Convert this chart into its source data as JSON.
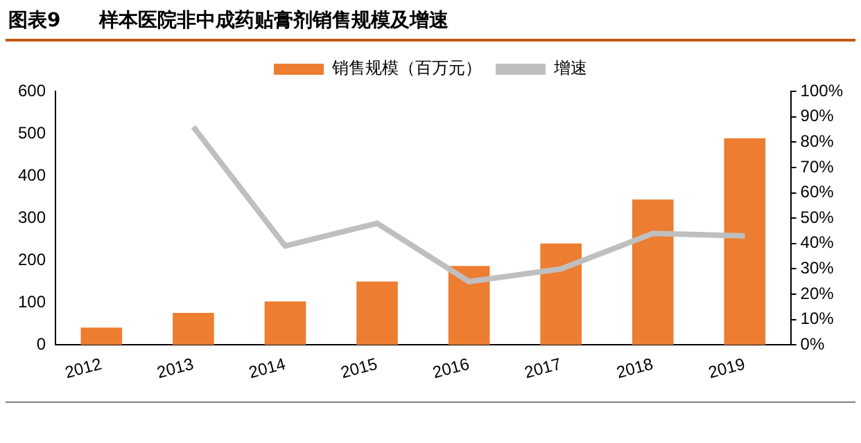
{
  "chart_data": {
    "type": "bar",
    "title": "图表9　　样本医院非中成药贴膏剂销售规模及增速",
    "categories": [
      "2012",
      "2013",
      "2014",
      "2015",
      "2016",
      "2017",
      "2018",
      "2019"
    ],
    "series": [
      {
        "name": "销售规模（百万元）",
        "color": "#ed7d31",
        "values": [
          41,
          76,
          103,
          150,
          187,
          240,
          344,
          489
        ]
      },
      {
        "name": "增速",
        "type": "line",
        "axis": "y2",
        "color": "#bfbfbf",
        "values": [
          null,
          86,
          39,
          48,
          25,
          30,
          44,
          43
        ]
      }
    ],
    "ylim": [
      0,
      600
    ],
    "yticks": [
      0,
      100,
      200,
      300,
      400,
      500,
      600
    ],
    "y2lim": [
      0,
      100
    ],
    "y2ticks": [
      {
        "value": 0,
        "label": "0%"
      },
      {
        "value": 10,
        "label": "10%"
      },
      {
        "value": 20,
        "label": "20%"
      },
      {
        "value": 30,
        "label": "30%"
      },
      {
        "value": 40,
        "label": "40%"
      },
      {
        "value": 50,
        "label": "50%"
      },
      {
        "value": 60,
        "label": "60%"
      },
      {
        "value": 70,
        "label": "70%"
      },
      {
        "value": 80,
        "label": "80%"
      },
      {
        "value": 90,
        "label": "90%"
      },
      {
        "value": 100,
        "label": "100%"
      }
    ],
    "legend": "top",
    "grid": false,
    "marker": "none"
  }
}
